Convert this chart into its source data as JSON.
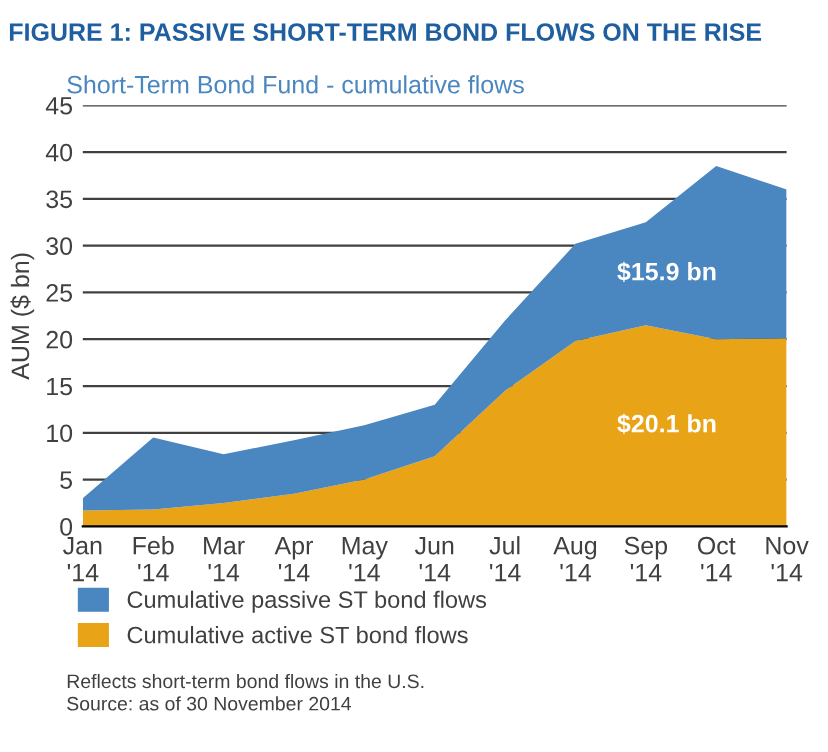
{
  "chart_data": {
    "type": "area",
    "stacked": true,
    "title": "FIGURE 1: PASSIVE SHORT-TERM BOND FLOWS ON THE RISE",
    "subtitle": "Short-Term Bond Fund - cumulative flows",
    "ylabel": "AUM ($ bn)",
    "categories": [
      "Jan\n'14",
      "Feb\n'14",
      "Mar\n'14",
      "Apr\n'14",
      "May\n'14",
      "Jun\n'14",
      "Jul\n'14",
      "Aug\n'14",
      "Sep\n'14",
      "Oct\n'14",
      "Nov\n'14"
    ],
    "series": [
      {
        "name": "Cumulative active ST bond flows",
        "color": "#e8a317",
        "values": [
          1.7,
          1.8,
          2.5,
          3.5,
          5.0,
          7.5,
          14.5,
          19.8,
          21.5,
          20.0,
          20.1
        ]
      },
      {
        "name": "Cumulative passive ST bond flows",
        "color": "#4a86bf",
        "values": [
          1.3,
          7.7,
          5.2,
          5.7,
          5.8,
          5.5,
          7.5,
          10.4,
          11.0,
          18.5,
          15.9
        ]
      }
    ],
    "ylim": [
      0,
      45
    ],
    "yticks": [
      0,
      5,
      10,
      15,
      20,
      25,
      30,
      35,
      40,
      45
    ],
    "grid": "y",
    "legend": "bottom",
    "annotations": [
      "$20.1 bn",
      "$15.9 bn",
      "Reflects short-term bond flows in the U.S.\nSource: as of 30 November 2014"
    ]
  }
}
